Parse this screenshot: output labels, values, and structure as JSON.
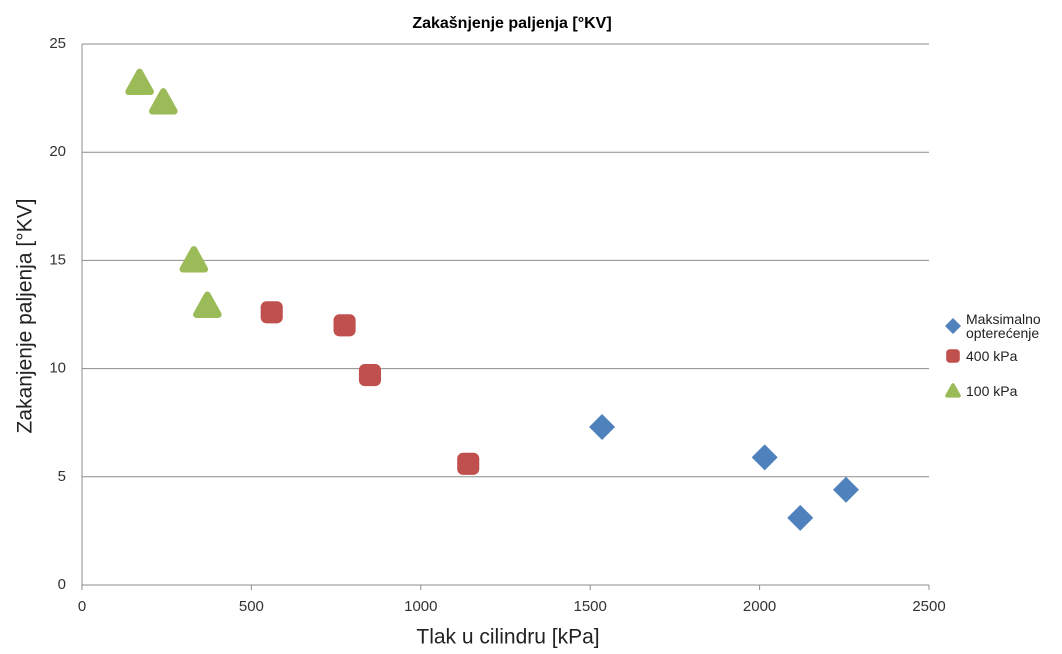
{
  "chart_data": {
    "type": "scatter",
    "title": "Zakašnjenje paljenja [°KV]",
    "x_label": "Tlak u cilindru [kPa]",
    "y_label": "Zakanjenje paljenja [°KV]",
    "xlim": [
      0,
      2500
    ],
    "xticks": [
      0,
      500,
      1000,
      1500,
      2000,
      2500
    ],
    "ylim": [
      0,
      25
    ],
    "yticks": [
      0,
      5,
      10,
      15,
      20,
      25
    ],
    "grid": true,
    "legend": "right",
    "series": [
      {
        "name": "Maksimalno opterećenje",
        "color": "#4f81bd",
        "marker": "diamond",
        "x": [
          1535,
          2015,
          2120,
          2255
        ],
        "values": [
          7.3,
          5.9,
          3.1,
          4.4
        ]
      },
      {
        "name": "400 kPa",
        "color": "#c0504d",
        "marker": "square",
        "x": [
          560,
          775,
          850,
          1140
        ],
        "values": [
          12.6,
          12.0,
          9.7,
          5.6
        ]
      },
      {
        "name": "100 kPa",
        "color": "#9bbb59",
        "marker": "triangle",
        "x": [
          170,
          240,
          330,
          370
        ],
        "values": [
          23.2,
          22.3,
          15.0,
          12.9
        ]
      }
    ]
  }
}
